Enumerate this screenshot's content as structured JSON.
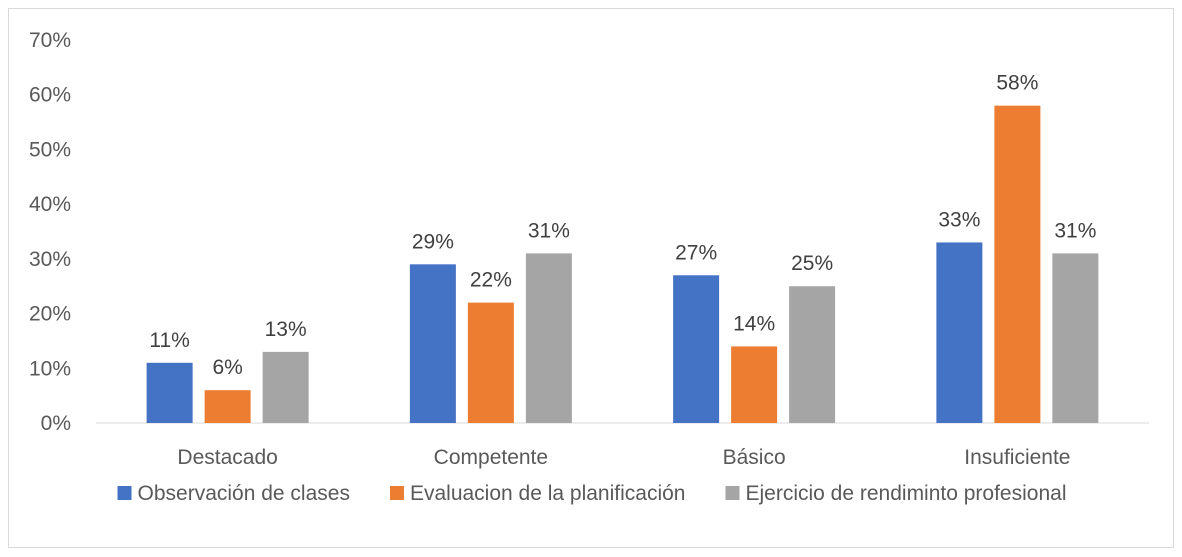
{
  "chart_data": {
    "type": "bar",
    "categories": [
      "Destacado",
      "Competente",
      "Básico",
      "Insuficiente"
    ],
    "series": [
      {
        "name": "Observación de clases",
        "color": "#4472c4",
        "values": [
          11,
          29,
          27,
          33
        ],
        "labels": [
          "11%",
          "29%",
          "27%",
          "33%"
        ]
      },
      {
        "name": "Evaluacion de la planificación",
        "color": "#ed7d31",
        "values": [
          6,
          22,
          14,
          58
        ],
        "labels": [
          "6%",
          "22%",
          "14%",
          "58%"
        ]
      },
      {
        "name": "Ejercicio de rendiminto profesional",
        "color": "#a5a5a5",
        "values": [
          13,
          31,
          25,
          31
        ],
        "labels": [
          "13%",
          "31%",
          "25%",
          "31%"
        ]
      }
    ],
    "ylim": [
      0,
      70
    ],
    "yticks": [
      "0%",
      "10%",
      "20%",
      "30%",
      "40%",
      "50%",
      "60%",
      "70%"
    ],
    "legend_position": "bottom",
    "grid": false,
    "title": "",
    "xlabel": "",
    "ylabel": ""
  }
}
